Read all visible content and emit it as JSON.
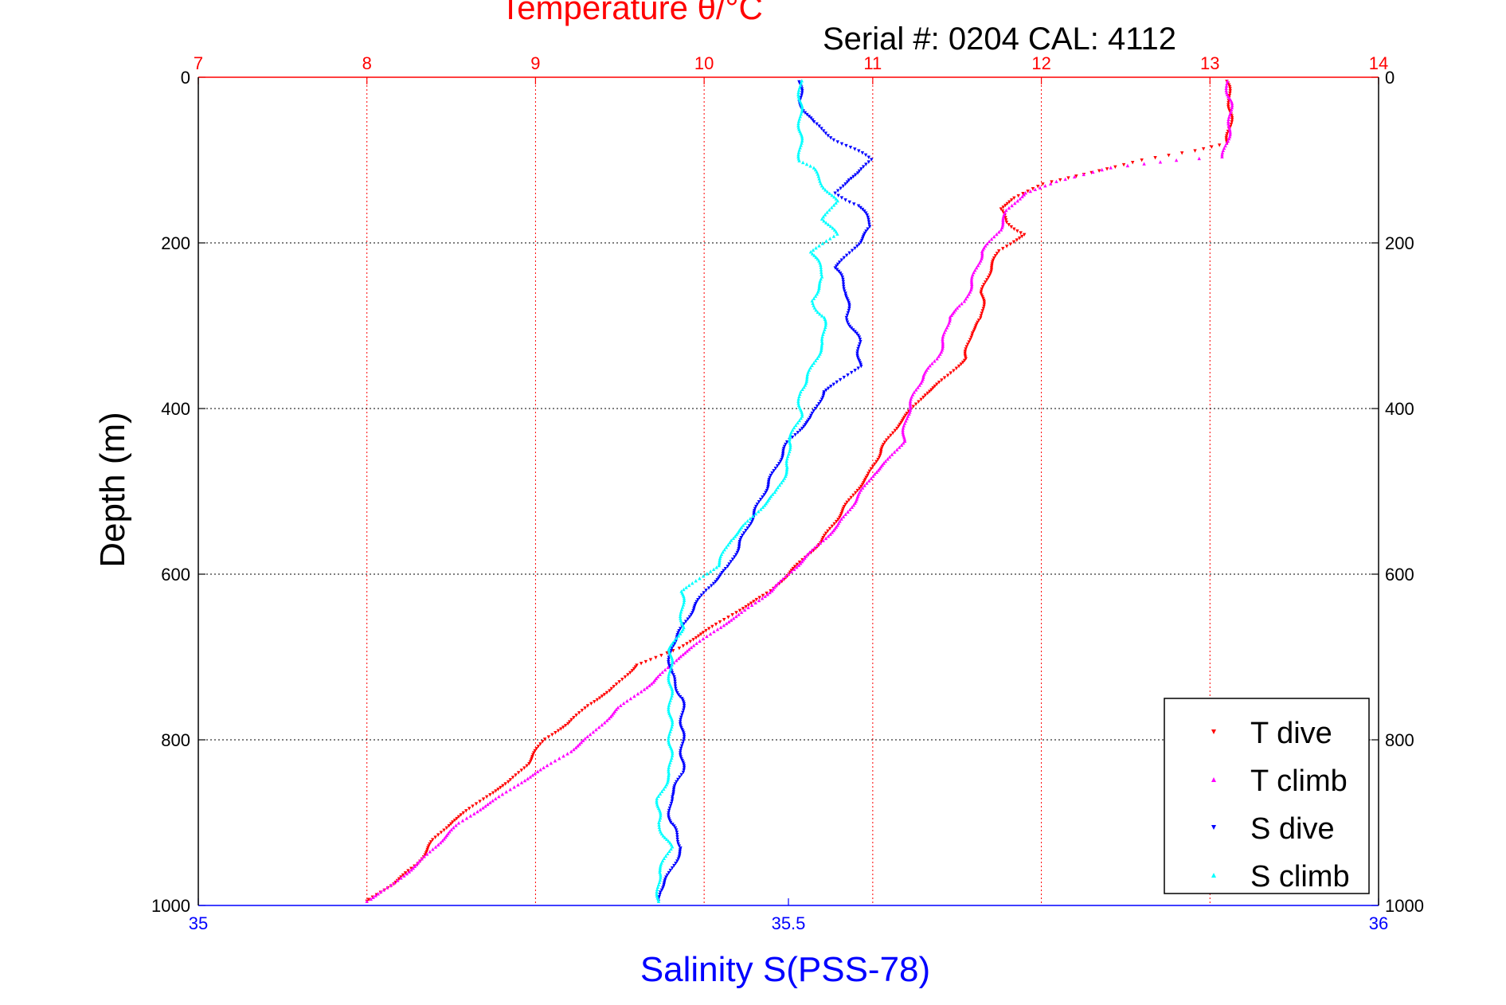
{
  "chart_data": {
    "type": "scatter",
    "title": "Temperature θ/°C",
    "subtitle": "Serial #: 0204  CAL: 4112",
    "ylabel": "Depth (m)",
    "xlabel": "Salinity S(PSS-78)",
    "grid": true,
    "legend_position": "bottom-right",
    "temperature_axis": {
      "range": [
        7,
        14
      ],
      "ticks": [
        "7",
        "8",
        "9",
        "10",
        "11",
        "12",
        "13",
        "14"
      ],
      "color": "#ff0000"
    },
    "salinity_axis": {
      "range": [
        35,
        36
      ],
      "ticks": [
        "35",
        "35.5",
        "36"
      ],
      "color": "#0000ff"
    },
    "depth_axis": {
      "range": [
        0,
        1000
      ],
      "reversed": true,
      "ticks": [
        "0",
        "200",
        "400",
        "600",
        "800",
        "1000"
      ]
    },
    "series": [
      {
        "name": "T dive",
        "axis": "temperature",
        "color": "#ff0000",
        "marker": "triangle-down",
        "points": [
          [
            13.1,
            5
          ],
          [
            13.12,
            30
          ],
          [
            13.12,
            60
          ],
          [
            13.1,
            80
          ],
          [
            12.9,
            90
          ],
          [
            12.6,
            100
          ],
          [
            12.3,
            115
          ],
          [
            12.0,
            130
          ],
          [
            11.85,
            145
          ],
          [
            11.75,
            160
          ],
          [
            11.8,
            175
          ],
          [
            11.9,
            190
          ],
          [
            11.75,
            210
          ],
          [
            11.7,
            230
          ],
          [
            11.65,
            260
          ],
          [
            11.65,
            290
          ],
          [
            11.58,
            310
          ],
          [
            11.55,
            340
          ],
          [
            11.45,
            360
          ],
          [
            11.3,
            385
          ],
          [
            11.15,
            420
          ],
          [
            11.05,
            450
          ],
          [
            10.98,
            480
          ],
          [
            10.9,
            500
          ],
          [
            10.8,
            530
          ],
          [
            10.7,
            560
          ],
          [
            10.55,
            590
          ],
          [
            10.4,
            620
          ],
          [
            10.2,
            645
          ],
          [
            10.0,
            670
          ],
          [
            9.85,
            690
          ],
          [
            9.6,
            710
          ],
          [
            9.45,
            740
          ],
          [
            9.3,
            760
          ],
          [
            9.2,
            780
          ],
          [
            9.05,
            800
          ],
          [
            8.95,
            830
          ],
          [
            8.85,
            850
          ],
          [
            8.7,
            870
          ],
          [
            8.5,
            900
          ],
          [
            8.4,
            920
          ],
          [
            8.3,
            950
          ],
          [
            8.15,
            975
          ],
          [
            8.0,
            995
          ]
        ]
      },
      {
        "name": "T climb",
        "axis": "temperature",
        "color": "#ff00ff",
        "marker": "triangle-up",
        "points": [
          [
            13.1,
            5
          ],
          [
            13.12,
            30
          ],
          [
            13.12,
            60
          ],
          [
            13.08,
            95
          ],
          [
            12.8,
            100
          ],
          [
            12.4,
            110
          ],
          [
            12.1,
            125
          ],
          [
            11.9,
            140
          ],
          [
            11.8,
            160
          ],
          [
            11.75,
            185
          ],
          [
            11.65,
            210
          ],
          [
            11.6,
            240
          ],
          [
            11.55,
            270
          ],
          [
            11.45,
            290
          ],
          [
            11.42,
            320
          ],
          [
            11.38,
            340
          ],
          [
            11.3,
            360
          ],
          [
            11.25,
            380
          ],
          [
            11.2,
            410
          ],
          [
            11.18,
            440
          ],
          [
            11.1,
            460
          ],
          [
            11.0,
            480
          ],
          [
            10.9,
            510
          ],
          [
            10.8,
            540
          ],
          [
            10.7,
            560
          ],
          [
            10.55,
            590
          ],
          [
            10.4,
            620
          ],
          [
            10.2,
            650
          ],
          [
            10.05,
            670
          ],
          [
            9.85,
            700
          ],
          [
            9.7,
            730
          ],
          [
            9.5,
            760
          ],
          [
            9.35,
            790
          ],
          [
            9.2,
            815
          ],
          [
            9.0,
            840
          ],
          [
            8.85,
            860
          ],
          [
            8.7,
            880
          ],
          [
            8.55,
            900
          ],
          [
            8.45,
            920
          ],
          [
            8.3,
            950
          ],
          [
            8.15,
            975
          ],
          [
            8.0,
            995
          ]
        ]
      },
      {
        "name": "S dive",
        "axis": "salinity",
        "color": "#0000ff",
        "marker": "triangle-down",
        "points": [
          [
            35.51,
            5
          ],
          [
            35.51,
            30
          ],
          [
            35.52,
            55
          ],
          [
            35.54,
            75
          ],
          [
            35.57,
            100
          ],
          [
            35.56,
            115
          ],
          [
            35.55,
            125
          ],
          [
            35.54,
            140
          ],
          [
            35.56,
            155
          ],
          [
            35.57,
            180
          ],
          [
            35.56,
            200
          ],
          [
            35.54,
            230
          ],
          [
            35.55,
            260
          ],
          [
            35.55,
            290
          ],
          [
            35.56,
            320
          ],
          [
            35.56,
            350
          ],
          [
            35.53,
            380
          ],
          [
            35.52,
            410
          ],
          [
            35.5,
            440
          ],
          [
            35.49,
            470
          ],
          [
            35.48,
            500
          ],
          [
            35.47,
            530
          ],
          [
            35.46,
            560
          ],
          [
            35.45,
            590
          ],
          [
            35.43,
            620
          ],
          [
            35.42,
            640
          ],
          [
            35.41,
            665
          ],
          [
            35.4,
            690
          ],
          [
            35.4,
            720
          ],
          [
            35.41,
            750
          ],
          [
            35.41,
            780
          ],
          [
            35.41,
            810
          ],
          [
            35.41,
            840
          ],
          [
            35.4,
            870
          ],
          [
            35.4,
            900
          ],
          [
            35.41,
            930
          ],
          [
            35.4,
            960
          ],
          [
            35.39,
            985
          ],
          [
            35.39,
            995
          ]
        ]
      },
      {
        "name": "S climb",
        "axis": "salinity",
        "color": "#00ffff",
        "marker": "triangle-up",
        "points": [
          [
            35.51,
            5
          ],
          [
            35.51,
            30
          ],
          [
            35.51,
            55
          ],
          [
            35.51,
            80
          ],
          [
            35.51,
            100
          ],
          [
            35.52,
            110
          ],
          [
            35.53,
            130
          ],
          [
            35.54,
            150
          ],
          [
            35.53,
            170
          ],
          [
            35.54,
            190
          ],
          [
            35.52,
            210
          ],
          [
            35.53,
            240
          ],
          [
            35.52,
            270
          ],
          [
            35.53,
            290
          ],
          [
            35.53,
            320
          ],
          [
            35.52,
            350
          ],
          [
            35.51,
            380
          ],
          [
            35.51,
            410
          ],
          [
            35.5,
            440
          ],
          [
            35.5,
            470
          ],
          [
            35.49,
            500
          ],
          [
            35.47,
            530
          ],
          [
            35.45,
            560
          ],
          [
            35.44,
            590
          ],
          [
            35.41,
            620
          ],
          [
            35.41,
            640
          ],
          [
            35.41,
            665
          ],
          [
            35.4,
            690
          ],
          [
            35.4,
            720
          ],
          [
            35.4,
            750
          ],
          [
            35.4,
            780
          ],
          [
            35.4,
            810
          ],
          [
            35.4,
            840
          ],
          [
            35.39,
            870
          ],
          [
            35.39,
            900
          ],
          [
            35.4,
            930
          ],
          [
            35.39,
            960
          ],
          [
            35.39,
            985
          ],
          [
            35.39,
            995
          ]
        ]
      }
    ]
  }
}
